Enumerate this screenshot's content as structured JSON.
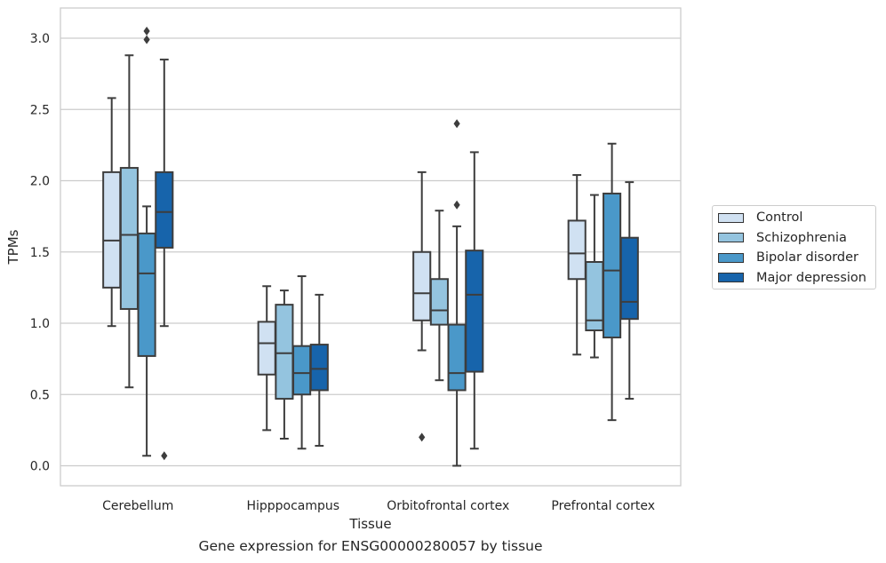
{
  "caption": "Gene expression for ENSG00000280057 by tissue",
  "chart_data": {
    "type": "boxplot",
    "title": "",
    "xlabel": "Tissue",
    "ylabel": "TPMs",
    "ylim": [
      -0.14,
      3.21
    ],
    "yticks": [
      0.0,
      0.5,
      1.0,
      1.5,
      2.0,
      2.5,
      3.0
    ],
    "ytick_labels": [
      "0.0",
      "0.5",
      "1.0",
      "1.5",
      "2.0",
      "2.5",
      "3.0"
    ],
    "grid": "horizontal",
    "legend_placement": "center-right outside",
    "categories": [
      "Cerebellum",
      "Hipppocampus",
      "Orbitofrontal cortex",
      "Prefrontal cortex"
    ],
    "series": [
      {
        "name": "Control",
        "color": "#d0e1f2",
        "boxes": [
          {
            "whisker_low": 0.98,
            "q1": 1.25,
            "median": 1.58,
            "q3": 2.06,
            "whisker_high": 2.58,
            "outliers": []
          },
          {
            "whisker_low": 0.25,
            "q1": 0.64,
            "median": 0.86,
            "q3": 1.01,
            "whisker_high": 1.26,
            "outliers": []
          },
          {
            "whisker_low": 0.81,
            "q1": 1.02,
            "median": 1.21,
            "q3": 1.5,
            "whisker_high": 2.06,
            "outliers": [
              0.2
            ]
          },
          {
            "whisker_low": 0.78,
            "q1": 1.31,
            "median": 1.49,
            "q3": 1.72,
            "whisker_high": 2.04,
            "outliers": []
          }
        ]
      },
      {
        "name": "Schizophrenia",
        "color": "#94c4df",
        "boxes": [
          {
            "whisker_low": 0.55,
            "q1": 1.1,
            "median": 1.62,
            "q3": 2.09,
            "whisker_high": 2.88,
            "outliers": []
          },
          {
            "whisker_low": 0.19,
            "q1": 0.47,
            "median": 0.79,
            "q3": 1.13,
            "whisker_high": 1.23,
            "outliers": []
          },
          {
            "whisker_low": 0.6,
            "q1": 0.99,
            "median": 1.09,
            "q3": 1.31,
            "whisker_high": 1.79,
            "outliers": []
          },
          {
            "whisker_low": 0.76,
            "q1": 0.95,
            "median": 1.02,
            "q3": 1.43,
            "whisker_high": 1.9,
            "outliers": []
          }
        ]
      },
      {
        "name": "Bipolar disorder",
        "color": "#4a98c9",
        "boxes": [
          {
            "whisker_low": 0.07,
            "q1": 0.77,
            "median": 1.35,
            "q3": 1.63,
            "whisker_high": 1.82,
            "outliers": [
              2.99,
              3.05
            ]
          },
          {
            "whisker_low": 0.12,
            "q1": 0.5,
            "median": 0.65,
            "q3": 0.84,
            "whisker_high": 1.33,
            "outliers": []
          },
          {
            "whisker_low": 0.0,
            "q1": 0.53,
            "median": 0.65,
            "q3": 0.99,
            "whisker_high": 1.68,
            "outliers": [
              1.83,
              2.4
            ]
          },
          {
            "whisker_low": 0.32,
            "q1": 0.9,
            "median": 1.37,
            "q3": 1.91,
            "whisker_high": 2.26,
            "outliers": []
          }
        ]
      },
      {
        "name": "Major depression",
        "color": "#1764ab",
        "boxes": [
          {
            "whisker_low": 0.98,
            "q1": 1.53,
            "median": 1.78,
            "q3": 2.06,
            "whisker_high": 2.85,
            "outliers": [
              0.07
            ]
          },
          {
            "whisker_low": 0.14,
            "q1": 0.53,
            "median": 0.68,
            "q3": 0.85,
            "whisker_high": 1.2,
            "outliers": []
          },
          {
            "whisker_low": 0.12,
            "q1": 0.66,
            "median": 1.2,
            "q3": 1.51,
            "whisker_high": 2.2,
            "outliers": []
          },
          {
            "whisker_low": 0.47,
            "q1": 1.03,
            "median": 1.15,
            "q3": 1.6,
            "whisker_high": 1.99,
            "outliers": []
          }
        ]
      }
    ]
  }
}
